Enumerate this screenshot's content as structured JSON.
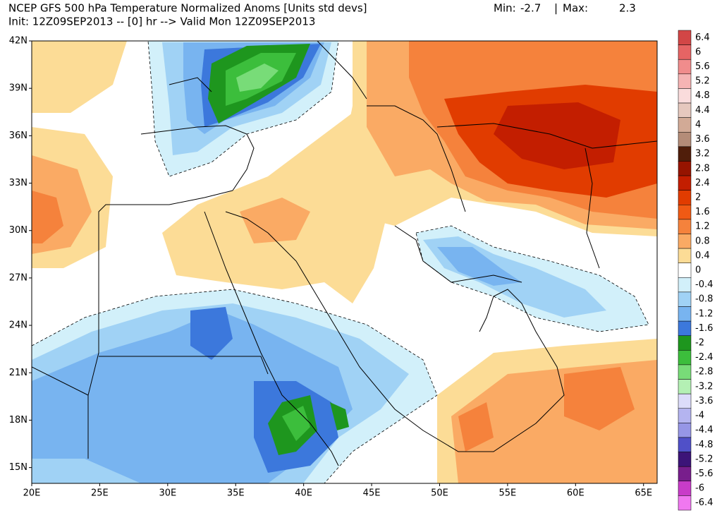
{
  "header": {
    "title": "NCEP GFS 500 hPa Temperature Normalized Anoms [Units std devs]",
    "min_label": "Min:",
    "min": -2.7,
    "separator": "|",
    "max_label": "Max:",
    "max": 2.3,
    "subtitle": "Init: 12Z09SEP2013 -- [0] hr --> Valid Mon 12Z09SEP2013"
  },
  "map": {
    "lon_range": [
      20,
      66
    ],
    "lat_range": [
      14,
      42
    ],
    "lon_ticks": [
      {
        "value": 20,
        "label": "20E"
      },
      {
        "value": 25,
        "label": "25E"
      },
      {
        "value": 30,
        "label": "30E"
      },
      {
        "value": 35,
        "label": "35E"
      },
      {
        "value": 40,
        "label": "40E"
      },
      {
        "value": 45,
        "label": "45E"
      },
      {
        "value": 50,
        "label": "50E"
      },
      {
        "value": 55,
        "label": "55E"
      },
      {
        "value": 60,
        "label": "60E"
      },
      {
        "value": 65,
        "label": "65E"
      }
    ],
    "lat_ticks": [
      {
        "value": 42,
        "label": "42N"
      },
      {
        "value": 39,
        "label": "39N"
      },
      {
        "value": 36,
        "label": "36N"
      },
      {
        "value": 33,
        "label": "33N"
      },
      {
        "value": 30,
        "label": "30N"
      },
      {
        "value": 27,
        "label": "27N"
      },
      {
        "value": 24,
        "label": "24N"
      },
      {
        "value": 21,
        "label": "21N"
      },
      {
        "value": 18,
        "label": "18N"
      },
      {
        "value": 15,
        "label": "15N"
      }
    ]
  },
  "colorbar": {
    "levels": [
      6.4,
      6,
      5.6,
      5.2,
      4.8,
      4.4,
      4,
      3.6,
      3.2,
      2.8,
      2.4,
      2,
      1.6,
      1.2,
      0.8,
      0.4,
      0,
      -0.4,
      -0.8,
      -1.2,
      -1.6,
      -2,
      -2.4,
      -2.8,
      -3.2,
      -3.6,
      -4,
      -4.4,
      -4.8,
      -5.2,
      -5.6,
      -6,
      -6.4
    ],
    "colors": [
      "#d24646",
      "#e66464",
      "#f08c8c",
      "#f5b4b4",
      "#fadcdc",
      "#e6c8be",
      "#d2aa96",
      "#b48c78",
      "#501e0a",
      "#961400",
      "#c31e00",
      "#e13c00",
      "#f05a14",
      "#f5823c",
      "#faaa64",
      "#fcdc96",
      "#ffffff",
      "#d2f0fa",
      "#a0d2f5",
      "#78b4f0",
      "#3c78dc",
      "#1e961e",
      "#3cbe3c",
      "#78dc78",
      "#b4f0b4",
      "#dcdcfa",
      "#b4b4f0",
      "#9696e6",
      "#5050c8",
      "#3c1478",
      "#781e8c",
      "#c83cc8",
      "#f078f0"
    ]
  }
}
